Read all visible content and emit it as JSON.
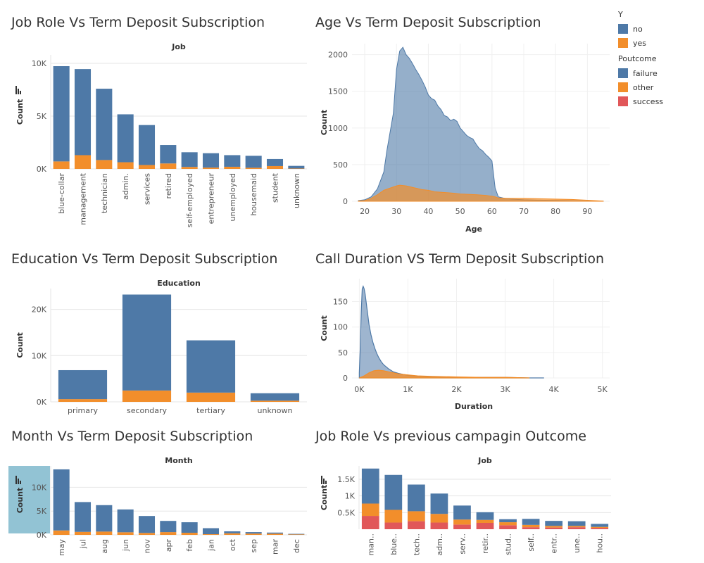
{
  "colors": {
    "no": "#4e79a7",
    "yes": "#f28e2b",
    "failure": "#4e79a7",
    "other": "#f28e2b",
    "success": "#e15759",
    "grid": "#e6e6e6",
    "axis": "#bdbdbd"
  },
  "legend": {
    "y_title": "Y",
    "y_items": [
      {
        "label": "no",
        "color": "#4e79a7"
      },
      {
        "label": "yes",
        "color": "#f28e2b"
      }
    ],
    "poutcome_title": "Poutcome",
    "poutcome_items": [
      {
        "label": "failure",
        "color": "#4e79a7"
      },
      {
        "label": "other",
        "color": "#f28e2b"
      },
      {
        "label": "success",
        "color": "#e15759"
      }
    ]
  },
  "titles": {
    "job": "Job Role Vs Term Deposit Subscription",
    "age": "Age Vs Term Deposit Subscription",
    "education": "Education Vs Term Deposit Subscription",
    "duration": "Call Duration VS Term Deposit Subscription",
    "month": "Month Vs Term Deposit Subscription",
    "poutcome": "Job Role Vs previous campagin Outcome"
  },
  "chart_data": [
    {
      "id": "job",
      "type": "bar",
      "stacked": true,
      "title": "Job Role Vs Term Deposit Subscription",
      "header": "Job",
      "ylabel": "Count",
      "categories": [
        "blue-collar",
        "management",
        "technician",
        "admin.",
        "services",
        "retired",
        "self-employed",
        "entrepreneur",
        "unemployed",
        "housemaid",
        "student",
        "unknown"
      ],
      "series": [
        {
          "name": "no",
          "values": [
            9024,
            8157,
            6757,
            4540,
            3785,
            1748,
            1392,
            1364,
            1101,
            1131,
            669,
            254
          ]
        },
        {
          "name": "yes",
          "values": [
            708,
            1301,
            840,
            631,
            369,
            516,
            187,
            123,
            202,
            109,
            269,
            34
          ]
        }
      ],
      "ylim": [
        0,
        10800
      ],
      "yticks": [
        0,
        5000,
        10000
      ],
      "ytick_labels": [
        "0K",
        "5K",
        "10K"
      ]
    },
    {
      "id": "age",
      "type": "area",
      "title": "Age Vs Term Deposit Subscription",
      "xlabel": "Age",
      "ylabel": "Count",
      "xticks": [
        20,
        30,
        40,
        50,
        60,
        70,
        80,
        90
      ],
      "yticks": [
        0,
        500,
        1000,
        1500,
        2000
      ],
      "xlim": [
        16,
        97
      ],
      "ylim": [
        0,
        2150
      ],
      "series": [
        {
          "name": "no",
          "x": [
            18,
            20,
            22,
            24,
            26,
            27,
            28,
            29,
            30,
            31,
            32,
            33,
            34,
            35,
            36,
            37,
            38,
            39,
            40,
            41,
            42,
            43,
            44,
            45,
            46,
            47,
            48,
            49,
            50,
            51,
            52,
            53,
            54,
            55,
            56,
            57,
            58,
            59,
            60,
            61,
            62,
            64,
            66,
            70,
            75,
            80,
            85,
            90,
            93,
            95
          ],
          "y": [
            10,
            20,
            60,
            170,
            400,
            700,
            950,
            1200,
            1800,
            2050,
            2100,
            2000,
            1950,
            1880,
            1800,
            1730,
            1650,
            1560,
            1450,
            1400,
            1380,
            1300,
            1250,
            1170,
            1150,
            1100,
            1120,
            1090,
            1000,
            950,
            900,
            870,
            850,
            780,
            720,
            690,
            640,
            600,
            550,
            180,
            60,
            40,
            30,
            20,
            15,
            12,
            8,
            5,
            2,
            1
          ]
        },
        {
          "name": "yes",
          "x": [
            18,
            20,
            22,
            24,
            26,
            28,
            30,
            31,
            32,
            33,
            34,
            35,
            36,
            38,
            40,
            42,
            45,
            48,
            50,
            55,
            58,
            60,
            61,
            62,
            65,
            70,
            75,
            80,
            85,
            90,
            95
          ],
          "y": [
            5,
            10,
            40,
            90,
            150,
            180,
            210,
            220,
            215,
            210,
            200,
            190,
            180,
            160,
            150,
            130,
            120,
            110,
            100,
            90,
            80,
            70,
            60,
            45,
            40,
            40,
            35,
            30,
            25,
            15,
            3
          ]
        }
      ]
    },
    {
      "id": "education",
      "type": "bar",
      "stacked": true,
      "title": "Education Vs Term Deposit Subscription",
      "header": "Education",
      "ylabel": "Count",
      "categories": [
        "primary",
        "secondary",
        "tertiary",
        "unknown"
      ],
      "series": [
        {
          "name": "no",
          "values": [
            6260,
            20752,
            11305,
            1605
          ]
        },
        {
          "name": "yes",
          "values": [
            591,
            2450,
            1996,
            252
          ]
        }
      ],
      "ylim": [
        0,
        24500
      ],
      "yticks": [
        0,
        10000,
        20000
      ],
      "ytick_labels": [
        "0K",
        "10K",
        "20K"
      ]
    },
    {
      "id": "duration",
      "type": "histogram",
      "title": "Call Duration VS Term Deposit Subscription",
      "xlabel": "Duration",
      "ylabel": "Count",
      "xticks": [
        0,
        1000,
        2000,
        3000,
        4000,
        5000
      ],
      "xtick_labels": [
        "0K",
        "1K",
        "2K",
        "3K",
        "4K",
        "5K"
      ],
      "yticks": [
        0,
        50,
        100,
        150
      ],
      "xlim": [
        -150,
        5150
      ],
      "ylim": [
        0,
        195
      ],
      "series": [
        {
          "name": "no",
          "x": [
            0,
            20,
            40,
            60,
            80,
            100,
            120,
            140,
            160,
            180,
            200,
            240,
            280,
            320,
            360,
            400,
            450,
            500,
            550,
            600,
            700,
            800,
            900,
            1000,
            1200,
            1400,
            1600,
            1800,
            2000,
            2500,
            3000,
            3500,
            3800
          ],
          "y": [
            10,
            60,
            130,
            175,
            180,
            175,
            165,
            150,
            135,
            120,
            105,
            85,
            70,
            58,
            48,
            40,
            32,
            26,
            22,
            18,
            12,
            9,
            7,
            5,
            3,
            2,
            2,
            1,
            1,
            1,
            1,
            0,
            0
          ]
        },
        {
          "name": "yes",
          "x": [
            0,
            100,
            200,
            300,
            400,
            500,
            600,
            700,
            800,
            1000,
            1200,
            1500,
            2000,
            2500,
            3000,
            3500
          ],
          "y": [
            0,
            4,
            10,
            14,
            15,
            14,
            12,
            10,
            8,
            6,
            4,
            3,
            2,
            1,
            1,
            0
          ]
        }
      ]
    },
    {
      "id": "month",
      "type": "bar",
      "stacked": true,
      "title": "Month Vs Term Deposit Subscription",
      "header": "Month",
      "ylabel": "Count",
      "categories": [
        "may",
        "jul",
        "aug",
        "jun",
        "nov",
        "apr",
        "feb",
        "jan",
        "oct",
        "sep",
        "mar",
        "dec"
      ],
      "series": [
        {
          "name": "no",
          "values": [
            12841,
            6268,
            5559,
            4795,
            3567,
            2355,
            2208,
            1261,
            415,
            310,
            229,
            114
          ]
        },
        {
          "name": "yes",
          "values": [
            925,
            627,
            688,
            546,
            403,
            577,
            441,
            142,
            323,
            269,
            248,
            100
          ]
        }
      ],
      "ylim": [
        0,
        14500
      ],
      "yticks": [
        0,
        5000,
        10000
      ],
      "ytick_labels": [
        "0K",
        "5K",
        "10K"
      ]
    },
    {
      "id": "poutcome",
      "type": "bar",
      "stacked": true,
      "title": "Job Role Vs previous campagin Outcome",
      "header": "Job",
      "ylabel": "Count",
      "categories": [
        "man..",
        "blue..",
        "tech..",
        "adm..",
        "serv..",
        "retir..",
        "stud..",
        "self..",
        "entr..",
        "une..",
        "hou.."
      ],
      "series": [
        {
          "name": "failure",
          "values": [
            1050,
            1050,
            800,
            610,
            420,
            230,
            90,
            180,
            150,
            140,
            90
          ]
        },
        {
          "name": "other",
          "values": [
            370,
            380,
            300,
            260,
            150,
            90,
            90,
            70,
            50,
            40,
            30
          ]
        },
        {
          "name": "success",
          "values": [
            400,
            200,
            240,
            200,
            140,
            190,
            120,
            60,
            50,
            60,
            40
          ]
        }
      ],
      "ylim": [
        0,
        1900
      ],
      "yticks": [
        500,
        1000,
        1500
      ],
      "ytick_labels": [
        "0.5K",
        "1K",
        "1.5K"
      ]
    }
  ]
}
